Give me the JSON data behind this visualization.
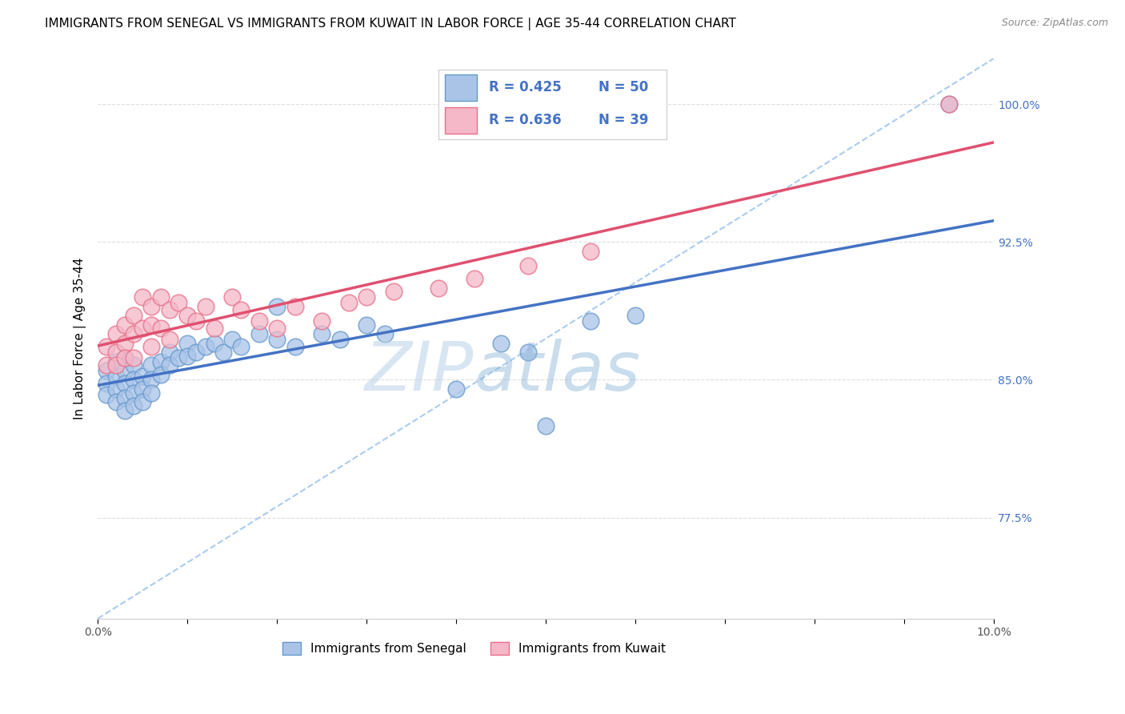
{
  "title": "IMMIGRANTS FROM SENEGAL VS IMMIGRANTS FROM KUWAIT IN LABOR FORCE | AGE 35-44 CORRELATION CHART",
  "source": "Source: ZipAtlas.com",
  "ylabel": "In Labor Force | Age 35-44",
  "x_min": 0.0,
  "x_max": 0.1,
  "y_min": 0.72,
  "y_max": 1.025,
  "yticks": [
    0.775,
    0.85,
    0.925,
    1.0
  ],
  "ytick_labels": [
    "77.5%",
    "85.0%",
    "92.5%",
    "100.0%"
  ],
  "xticks": [
    0.0,
    0.01,
    0.02,
    0.03,
    0.04,
    0.05,
    0.06,
    0.07,
    0.08,
    0.09,
    0.1
  ],
  "xtick_labels_show": [
    "0.0%",
    "",
    "",
    "",
    "",
    "",
    "",
    "",
    "",
    "",
    "10.0%"
  ],
  "color_senegal_fill": "#aac4e8",
  "color_senegal_edge": "#6699cc",
  "color_kuwait_fill": "#f4b8c8",
  "color_kuwait_edge": "#e8708a",
  "color_senegal_line": "#4472c4",
  "color_kuwait_line": "#e05070",
  "color_legend_text": "#4472c4",
  "color_ytick": "#4472c4",
  "color_grid": "#dddddd",
  "color_ref_line": "#aaccee",
  "background_color": "#ffffff",
  "watermark_zip": "ZIP",
  "watermark_atlas": "atlas",
  "title_fontsize": 11,
  "label_fontsize": 11,
  "tick_fontsize": 10,
  "legend_r1": "R = 0.425",
  "legend_n1": "N = 50",
  "legend_r2": "R = 0.636",
  "legend_n2": "N = 39",
  "senegal_x": [
    0.001,
    0.001,
    0.001,
    0.002,
    0.002,
    0.002,
    0.002,
    0.003,
    0.003,
    0.003,
    0.003,
    0.003,
    0.004,
    0.004,
    0.004,
    0.004,
    0.005,
    0.005,
    0.005,
    0.006,
    0.006,
    0.006,
    0.007,
    0.007,
    0.008,
    0.008,
    0.009,
    0.01,
    0.01,
    0.011,
    0.012,
    0.013,
    0.014,
    0.015,
    0.016,
    0.018,
    0.02,
    0.022,
    0.025,
    0.027,
    0.03,
    0.032,
    0.04,
    0.045,
    0.048,
    0.05,
    0.055,
    0.06,
    0.095,
    0.02
  ],
  "senegal_y": [
    0.855,
    0.848,
    0.842,
    0.86,
    0.852,
    0.845,
    0.838,
    0.862,
    0.855,
    0.848,
    0.84,
    0.833,
    0.858,
    0.85,
    0.843,
    0.836,
    0.852,
    0.845,
    0.838,
    0.858,
    0.85,
    0.843,
    0.86,
    0.853,
    0.865,
    0.858,
    0.862,
    0.87,
    0.863,
    0.865,
    0.868,
    0.87,
    0.865,
    0.872,
    0.868,
    0.875,
    0.872,
    0.868,
    0.875,
    0.872,
    0.88,
    0.875,
    0.845,
    0.87,
    0.865,
    0.825,
    0.882,
    0.885,
    1.0,
    0.89
  ],
  "kuwait_x": [
    0.001,
    0.001,
    0.002,
    0.002,
    0.002,
    0.003,
    0.003,
    0.003,
    0.004,
    0.004,
    0.004,
    0.005,
    0.005,
    0.006,
    0.006,
    0.006,
    0.007,
    0.007,
    0.008,
    0.008,
    0.009,
    0.01,
    0.011,
    0.012,
    0.013,
    0.015,
    0.016,
    0.018,
    0.02,
    0.022,
    0.025,
    0.028,
    0.03,
    0.033,
    0.038,
    0.042,
    0.048,
    0.055,
    0.095
  ],
  "kuwait_y": [
    0.868,
    0.858,
    0.875,
    0.865,
    0.858,
    0.88,
    0.87,
    0.862,
    0.885,
    0.875,
    0.862,
    0.895,
    0.878,
    0.89,
    0.88,
    0.868,
    0.895,
    0.878,
    0.888,
    0.872,
    0.892,
    0.885,
    0.882,
    0.89,
    0.878,
    0.895,
    0.888,
    0.882,
    0.878,
    0.89,
    0.882,
    0.892,
    0.895,
    0.898,
    0.9,
    0.905,
    0.912,
    0.92,
    1.0
  ],
  "ref_line_x": [
    0.0,
    0.1
  ],
  "ref_line_y": [
    0.72,
    1.025
  ]
}
